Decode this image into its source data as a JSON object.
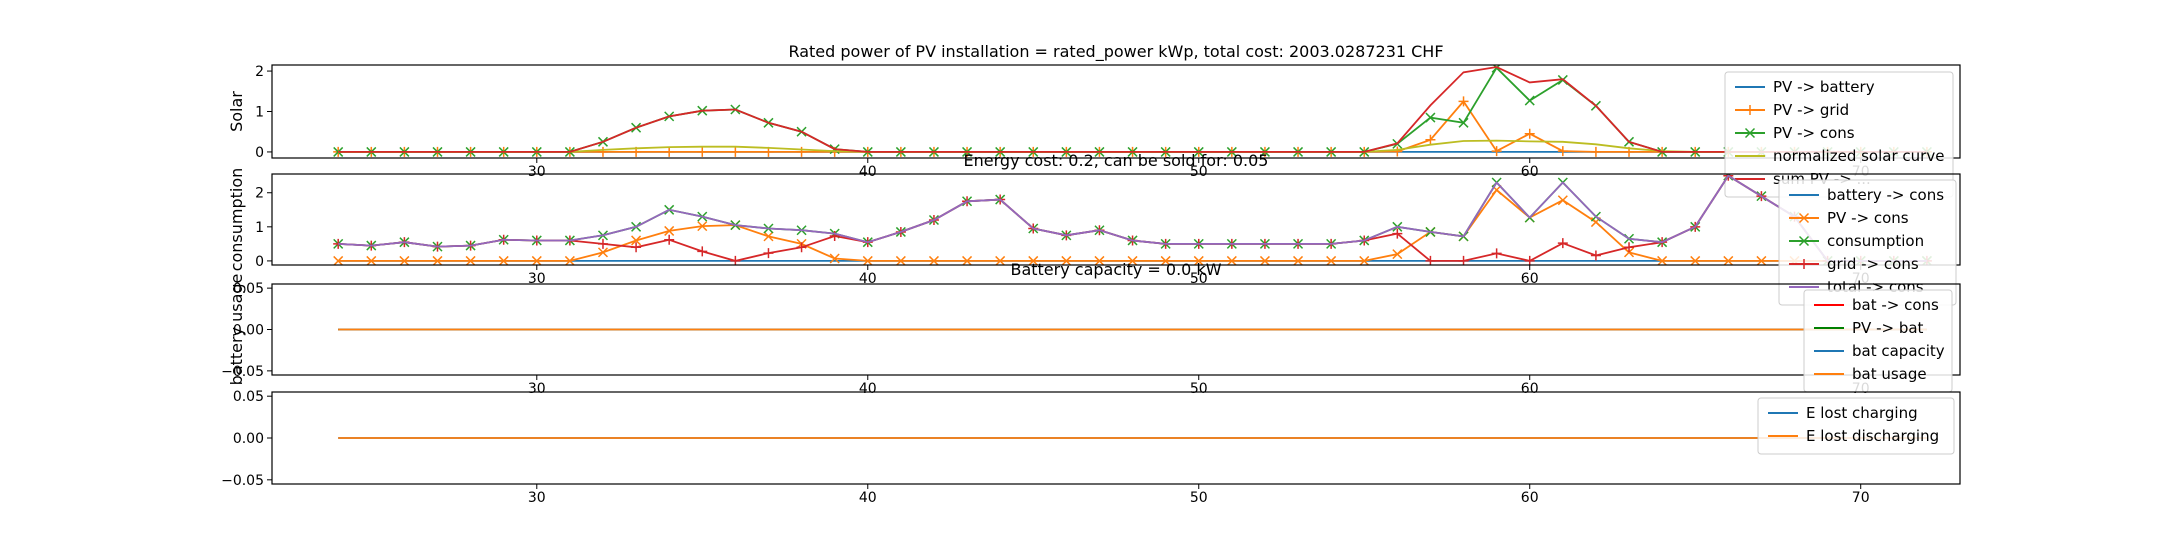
{
  "chart_data": [
    {
      "type": "line",
      "title": "Rated power of PV installation = rated_power kWp, total cost: 2003.0287231 CHF",
      "ylabel": "Solar",
      "xlim": [
        22,
        73
      ],
      "ylim": [
        -0.15,
        2.15
      ],
      "xticks": [
        30,
        40,
        50,
        60,
        70
      ],
      "yticks": [
        0,
        1,
        2
      ],
      "legend_position": "right",
      "x": [
        24,
        25,
        26,
        27,
        28,
        29,
        30,
        31,
        32,
        33,
        34,
        35,
        36,
        37,
        38,
        39,
        40,
        41,
        42,
        43,
        44,
        45,
        46,
        47,
        48,
        49,
        50,
        51,
        52,
        53,
        54,
        55,
        56,
        57,
        58,
        59,
        60,
        61,
        62,
        63,
        64,
        65,
        66,
        67,
        68,
        69,
        70,
        71,
        72
      ],
      "series": [
        {
          "name": "PV -> battery",
          "color": "#1f77b4",
          "marker": "",
          "values": [
            0,
            0,
            0,
            0,
            0,
            0,
            0,
            0,
            0,
            0,
            0,
            0,
            0,
            0,
            0,
            0,
            0,
            0,
            0,
            0,
            0,
            0,
            0,
            0,
            0,
            0,
            0,
            0,
            0,
            0,
            0,
            0,
            0,
            0,
            0,
            0,
            0,
            0,
            0,
            0,
            0,
            0,
            0,
            0,
            0,
            0,
            0,
            0,
            0
          ]
        },
        {
          "name": "PV -> grid",
          "color": "#ff7f0e",
          "marker": "plus",
          "values": [
            0,
            0,
            0,
            0,
            0,
            0,
            0,
            0,
            0,
            0,
            0,
            0,
            0,
            0,
            0,
            0,
            0,
            0,
            0,
            0,
            0,
            0,
            0,
            0,
            0,
            0,
            0,
            0,
            0,
            0,
            0,
            0,
            0.01,
            0.3,
            1.25,
            0.02,
            0.45,
            0.02,
            0,
            0,
            0,
            0,
            0,
            0,
            0,
            0,
            0,
            0,
            0
          ]
        },
        {
          "name": "PV -> cons",
          "color": "#2ca02c",
          "marker": "x",
          "values": [
            0,
            0,
            0,
            0,
            0,
            0,
            0,
            0,
            0.25,
            0.6,
            0.88,
            1.02,
            1.05,
            0.72,
            0.5,
            0.07,
            0,
            0,
            0,
            0,
            0,
            0,
            0,
            0,
            0,
            0,
            0,
            0,
            0,
            0,
            0,
            0,
            0.2,
            0.85,
            0.72,
            2.08,
            1.27,
            1.78,
            1.14,
            0.25,
            0,
            0,
            0,
            0,
            0,
            0,
            0,
            0,
            0
          ]
        },
        {
          "name": "normalized solar curve",
          "color": "#bcbd22",
          "marker": "",
          "values": [
            0,
            0,
            0,
            0,
            0,
            0,
            0,
            0,
            0.05,
            0.09,
            0.12,
            0.13,
            0.13,
            0.1,
            0.06,
            0.02,
            0,
            0,
            0,
            0,
            0,
            0,
            0,
            0,
            0,
            0,
            0,
            0,
            0,
            0,
            0,
            0,
            0.05,
            0.18,
            0.27,
            0.28,
            0.26,
            0.25,
            0.19,
            0.09,
            0.02,
            0,
            0,
            0,
            0,
            0,
            0,
            0,
            0
          ]
        },
        {
          "name": "sum PV -> ...",
          "color": "#d62728",
          "marker": "",
          "values": [
            0,
            0,
            0,
            0,
            0,
            0,
            0,
            0,
            0.25,
            0.6,
            0.88,
            1.02,
            1.05,
            0.72,
            0.5,
            0.07,
            0,
            0,
            0,
            0,
            0,
            0,
            0,
            0,
            0,
            0,
            0,
            0,
            0,
            0,
            0,
            0,
            0.21,
            1.15,
            1.97,
            2.1,
            1.72,
            1.8,
            1.14,
            0.25,
            0,
            0,
            0,
            0,
            0,
            0,
            0,
            0,
            0
          ]
        }
      ]
    },
    {
      "type": "line",
      "title": "Energy cost: 0.2, can be sold for: 0.05",
      "ylabel": "consumption",
      "xlim": [
        22,
        73
      ],
      "ylim": [
        -0.12,
        2.55
      ],
      "xticks": [
        30,
        40,
        50,
        60,
        70
      ],
      "yticks": [
        0,
        1,
        2
      ],
      "legend_position": "right",
      "x": [
        24,
        25,
        26,
        27,
        28,
        29,
        30,
        31,
        32,
        33,
        34,
        35,
        36,
        37,
        38,
        39,
        40,
        41,
        42,
        43,
        44,
        45,
        46,
        47,
        48,
        49,
        50,
        51,
        52,
        53,
        54,
        55,
        56,
        57,
        58,
        59,
        60,
        61,
        62,
        63,
        64,
        65,
        66,
        67,
        68,
        69,
        70,
        71,
        72
      ],
      "series": [
        {
          "name": "battery -> cons",
          "color": "#1f77b4",
          "marker": "",
          "values": [
            0,
            0,
            0,
            0,
            0,
            0,
            0,
            0,
            0,
            0,
            0,
            0,
            0,
            0,
            0,
            0,
            0,
            0,
            0,
            0,
            0,
            0,
            0,
            0,
            0,
            0,
            0,
            0,
            0,
            0,
            0,
            0,
            0,
            0,
            0,
            0,
            0,
            0,
            0,
            0,
            0,
            0,
            0,
            0,
            0,
            0,
            0,
            0,
            0
          ]
        },
        {
          "name": "PV -> cons",
          "color": "#ff7f0e",
          "marker": "x",
          "values": [
            0,
            0,
            0,
            0,
            0,
            0,
            0,
            0,
            0.25,
            0.6,
            0.88,
            1.02,
            1.05,
            0.72,
            0.5,
            0.07,
            0,
            0,
            0,
            0,
            0,
            0,
            0,
            0,
            0,
            0,
            0,
            0,
            0,
            0,
            0,
            0,
            0.2,
            0.85,
            0.72,
            2.08,
            1.27,
            1.78,
            1.14,
            0.25,
            0,
            0,
            0,
            0,
            0,
            0,
            0,
            0,
            0
          ]
        },
        {
          "name": "consumption",
          "color": "#2ca02c",
          "marker": "x",
          "values": [
            0.5,
            0.45,
            0.55,
            0.42,
            0.45,
            0.62,
            0.6,
            0.6,
            0.75,
            1.0,
            1.5,
            1.3,
            1.05,
            0.95,
            0.9,
            0.8,
            0.55,
            0.85,
            1.2,
            1.75,
            1.8,
            0.95,
            0.75,
            0.9,
            0.6,
            0.5,
            0.5,
            0.5,
            0.5,
            0.5,
            0.5,
            0.6,
            1.0,
            0.85,
            0.72,
            2.3,
            1.27,
            2.3,
            1.3,
            0.65,
            0.55,
            1.0,
            2.5,
            1.9,
            1.3,
            0,
            0,
            0,
            0
          ]
        },
        {
          "name": "grid -> cons",
          "color": "#d62728",
          "marker": "plus",
          "values": [
            0.5,
            0.45,
            0.55,
            0.42,
            0.45,
            0.62,
            0.6,
            0.6,
            0.5,
            0.4,
            0.62,
            0.28,
            0,
            0.23,
            0.4,
            0.73,
            0.55,
            0.85,
            1.2,
            1.75,
            1.8,
            0.95,
            0.75,
            0.9,
            0.6,
            0.5,
            0.5,
            0.5,
            0.5,
            0.5,
            0.5,
            0.6,
            0.8,
            0,
            0,
            0.22,
            0,
            0.52,
            0.16,
            0.4,
            0.55,
            1.0,
            2.5,
            1.9,
            1.3,
            0,
            0,
            0,
            0
          ]
        },
        {
          "name": "total -> cons",
          "color": "#9467bd",
          "marker": "",
          "values": [
            0.5,
            0.45,
            0.55,
            0.42,
            0.45,
            0.62,
            0.6,
            0.6,
            0.75,
            1.0,
            1.5,
            1.3,
            1.05,
            0.95,
            0.9,
            0.8,
            0.55,
            0.85,
            1.2,
            1.75,
            1.8,
            0.95,
            0.75,
            0.9,
            0.6,
            0.5,
            0.5,
            0.5,
            0.5,
            0.5,
            0.5,
            0.6,
            1.0,
            0.85,
            0.72,
            2.3,
            1.27,
            2.3,
            1.3,
            0.65,
            0.55,
            1.0,
            2.5,
            1.9,
            1.3,
            0,
            0,
            0,
            0
          ]
        }
      ]
    },
    {
      "type": "line",
      "title": "Battery capacity = 0.0 kW",
      "ylabel": "battery usage",
      "xlim": [
        22,
        73
      ],
      "ylim": [
        -0.055,
        0.055
      ],
      "xticks": [
        30,
        40,
        50,
        60,
        70
      ],
      "yticks": [
        -0.05,
        0.0,
        0.05
      ],
      "ytick_labels": [
        "−0.05",
        "0.00",
        "0.05"
      ],
      "legend_position": "right",
      "x": [
        24,
        72
      ],
      "series": [
        {
          "name": "bat -> cons",
          "color": "#ff0000",
          "marker": "",
          "values": [
            0,
            0
          ]
        },
        {
          "name": "PV -> bat",
          "color": "#008000",
          "marker": "",
          "values": [
            0,
            0
          ]
        },
        {
          "name": "bat capacity",
          "color": "#1f77b4",
          "marker": "",
          "values": [
            0,
            0
          ]
        },
        {
          "name": "bat usage",
          "color": "#ff7f0e",
          "marker": "",
          "values": [
            0,
            0
          ]
        }
      ]
    },
    {
      "type": "line",
      "title": "",
      "ylabel": "",
      "xlim": [
        22,
        73
      ],
      "ylim": [
        -0.055,
        0.055
      ],
      "xticks": [
        30,
        40,
        50,
        60,
        70
      ],
      "yticks": [
        -0.05,
        0.0,
        0.05
      ],
      "ytick_labels": [
        "−0.05",
        "0.00",
        "0.05"
      ],
      "legend_position": "right",
      "x": [
        24,
        72
      ],
      "series": [
        {
          "name": "E lost charging",
          "color": "#1f77b4",
          "marker": "",
          "values": [
            0,
            0
          ]
        },
        {
          "name": "E lost discharging",
          "color": "#ff7f0e",
          "marker": "",
          "values": [
            0,
            0
          ]
        }
      ]
    }
  ]
}
